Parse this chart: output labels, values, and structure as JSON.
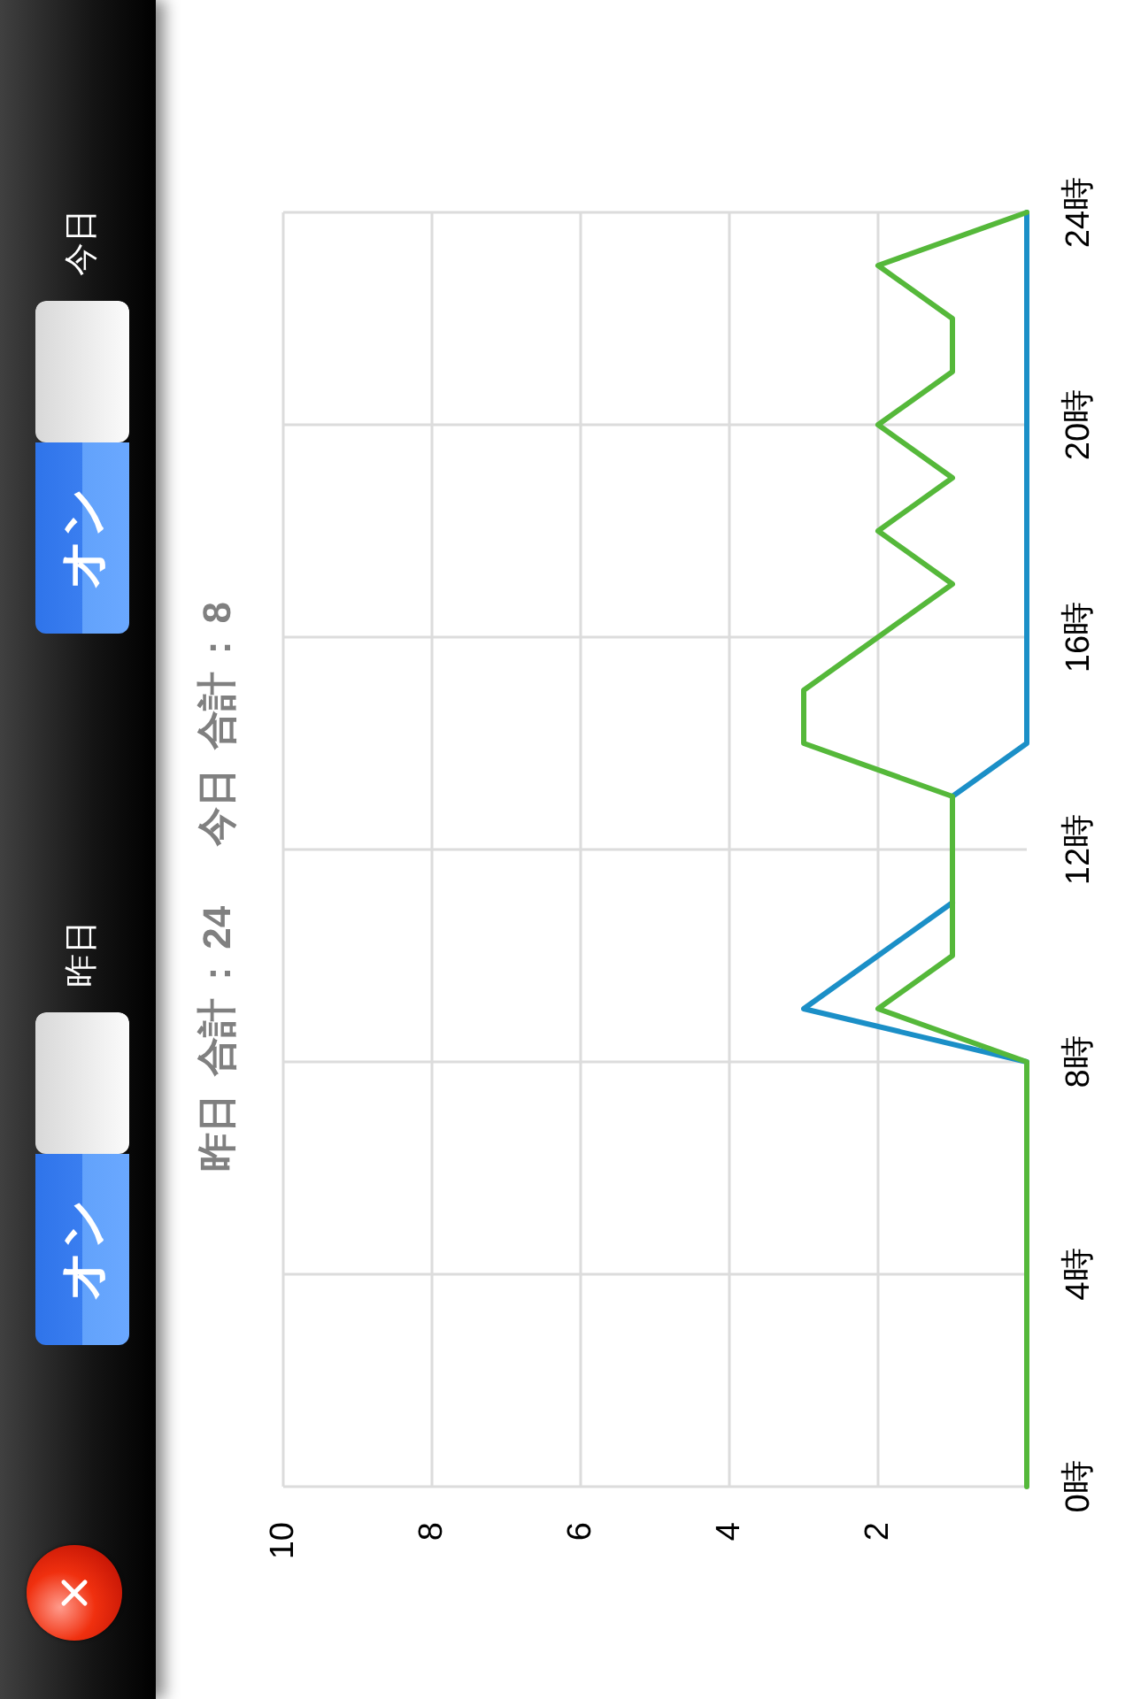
{
  "chart_data": {
    "type": "line",
    "xlim": [
      10,
      0
    ],
    "xticks": [
      10,
      8,
      6,
      4,
      2
    ],
    "ylim": [
      0,
      24
    ],
    "yticks": [
      {
        "value": 0,
        "label": "0時"
      },
      {
        "value": 4,
        "label": "4時"
      },
      {
        "value": 8,
        "label": "8時"
      },
      {
        "value": 12,
        "label": "12時"
      },
      {
        "value": 16,
        "label": "16時"
      },
      {
        "value": 20,
        "label": "20時"
      },
      {
        "value": 24,
        "label": "24時"
      }
    ],
    "series": [
      {
        "color": "#1b8fc7",
        "x": [
          null,
          null,
          null,
          null,
          null,
          null,
          null,
          null,
          0,
          3,
          2,
          1,
          null,
          1,
          0,
          0,
          0,
          0,
          0,
          0,
          0,
          0,
          0,
          0,
          0
        ],
        "values": [
          null,
          null,
          null,
          null,
          null,
          null,
          null,
          null,
          8,
          9,
          10,
          11,
          null,
          13,
          14,
          15,
          16,
          17,
          18,
          19,
          20,
          21,
          22,
          23,
          24
        ]
      },
      {
        "color": "#55b83a",
        "x": [
          0,
          0,
          0,
          0,
          0,
          0,
          0,
          0,
          0,
          2,
          1,
          1,
          1,
          1,
          3,
          3,
          2,
          1,
          2,
          1,
          2,
          1,
          1,
          2,
          0
        ],
        "values": [
          0,
          1,
          2,
          3,
          4,
          5,
          6,
          7,
          8,
          9,
          10,
          11,
          12,
          13,
          14,
          15,
          16,
          17,
          18,
          19,
          20,
          21,
          22,
          23,
          24
        ]
      }
    ],
    "grid": true,
    "line_style": "solid",
    "annotations": [
      "オン",
      "昨日",
      "オン",
      "今日",
      "昨日 合計 : 24",
      "今日 合計 : 8"
    ]
  }
}
